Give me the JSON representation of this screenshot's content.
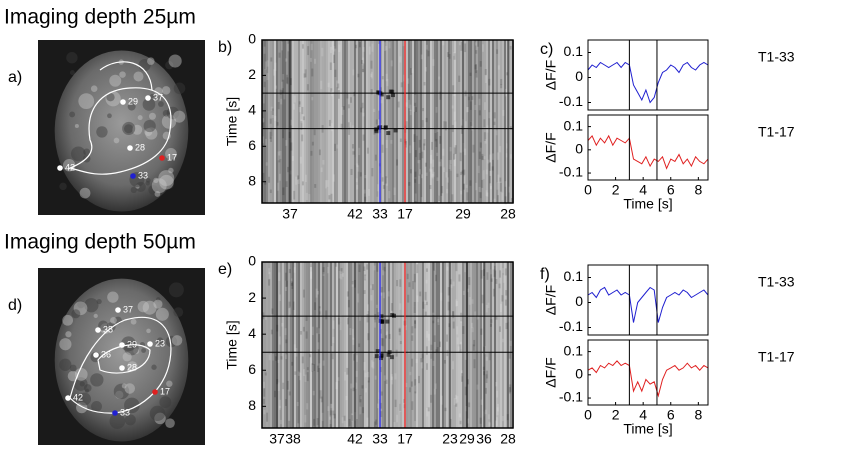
{
  "sections": [
    {
      "title": "Imaging depth 25µm",
      "image_label": "a)",
      "points": [
        "37",
        "29",
        "28",
        "17",
        "42",
        "33"
      ],
      "kymo_label": "b)",
      "kymo_ylabel": "Time [s]",
      "kymo_ylim": [
        0,
        9.2
      ],
      "kymo_yticks": [
        0,
        2,
        4,
        6,
        8
      ],
      "kymo_columns": [
        "37",
        "42",
        "33",
        "17",
        "29",
        "28"
      ],
      "traces_label": "c)"
    },
    {
      "title": "Imaging depth 50µm",
      "image_label": "d)",
      "points": [
        "37",
        "38",
        "36",
        "29",
        "23",
        "28",
        "17",
        "42",
        "33"
      ],
      "kymo_label": "e)",
      "kymo_ylabel": "Time [s]",
      "kymo_ylim": [
        0,
        9.2
      ],
      "kymo_yticks": [
        0,
        2,
        4,
        6,
        8
      ],
      "kymo_columns": [
        "37",
        "38",
        "42",
        "33",
        "17",
        "23",
        "29",
        "36",
        "28"
      ],
      "traces_label": "f)"
    }
  ],
  "chart_data": [
    {
      "type": "line",
      "title": "T1-33",
      "ylabel": "ΔF/F",
      "x": [
        0,
        0.3,
        0.6,
        0.9,
        1.2,
        1.5,
        1.8,
        2.1,
        2.4,
        2.7,
        3,
        3.3,
        3.6,
        3.9,
        4.2,
        4.5,
        4.8,
        5.1,
        5.4,
        5.7,
        6,
        6.3,
        6.6,
        6.9,
        7.2,
        7.5,
        7.8,
        8.1,
        8.4,
        8.7
      ],
      "series": [
        {
          "color": "#2020d0",
          "values": [
            0.03,
            0.05,
            0.04,
            0.06,
            0.05,
            0.04,
            0.05,
            0.06,
            0.04,
            0.06,
            0.05,
            -0.03,
            -0.06,
            -0.09,
            -0.05,
            -0.1,
            -0.08,
            -0.02,
            0.02,
            0.03,
            0.05,
            0.04,
            0.02,
            0.05,
            0.06,
            0.04,
            0.03,
            0.05,
            0.06,
            0.05
          ]
        }
      ],
      "xlim": [
        0,
        8.7
      ],
      "ylim": [
        -0.13,
        0.15
      ],
      "yticks": [
        0.1,
        0,
        -0.1
      ],
      "markers": [
        3,
        5
      ]
    },
    {
      "type": "line",
      "title": "T1-17",
      "ylabel": "ΔF/F",
      "xlabel": "Time [s]",
      "x": [
        0,
        0.3,
        0.6,
        0.9,
        1.2,
        1.5,
        1.8,
        2.1,
        2.4,
        2.7,
        3,
        3.3,
        3.6,
        3.9,
        4.2,
        4.5,
        4.8,
        5.1,
        5.4,
        5.7,
        6,
        6.3,
        6.6,
        6.9,
        7.2,
        7.5,
        7.8,
        8.1,
        8.4,
        8.7
      ],
      "series": [
        {
          "color": "#e02020",
          "values": [
            0.04,
            0.06,
            0.02,
            0.05,
            0.03,
            0.06,
            0.02,
            0.05,
            0.04,
            0.03,
            0.05,
            -0.04,
            -0.05,
            -0.06,
            -0.03,
            -0.07,
            -0.04,
            -0.05,
            -0.03,
            -0.08,
            -0.04,
            -0.05,
            -0.02,
            -0.06,
            -0.04,
            -0.07,
            -0.03,
            -0.05,
            -0.06,
            -0.04
          ]
        }
      ],
      "xlim": [
        0,
        8.7
      ],
      "ylim": [
        -0.13,
        0.15
      ],
      "yticks": [
        0.1,
        0,
        -0.1
      ],
      "xticks": [
        0,
        2,
        4,
        6,
        8
      ],
      "markers": [
        3,
        5
      ]
    },
    {
      "type": "line",
      "title": "T1-33",
      "ylabel": "ΔF/F",
      "x": [
        0,
        0.3,
        0.6,
        0.9,
        1.2,
        1.5,
        1.8,
        2.1,
        2.4,
        2.7,
        3,
        3.3,
        3.6,
        3.9,
        4.2,
        4.5,
        4.8,
        5.1,
        5.4,
        5.7,
        6,
        6.3,
        6.6,
        6.9,
        7.2,
        7.5,
        7.8,
        8.1,
        8.4,
        8.7
      ],
      "series": [
        {
          "color": "#2020d0",
          "values": [
            0.03,
            0.04,
            0.02,
            0.05,
            0.06,
            0.03,
            0.04,
            0.05,
            0.03,
            0.04,
            0.03,
            -0.08,
            0.0,
            0.02,
            0.04,
            0.06,
            0.05,
            -0.08,
            -0.02,
            0.02,
            0.03,
            0.04,
            0.03,
            0.05,
            0.04,
            0.02,
            0.03,
            0.04,
            0.05,
            0.03
          ]
        }
      ],
      "xlim": [
        0,
        8.7
      ],
      "ylim": [
        -0.13,
        0.15
      ],
      "yticks": [
        0.1,
        0,
        -0.1
      ],
      "markers": [
        3,
        5
      ]
    },
    {
      "type": "line",
      "title": "T1-17",
      "ylabel": "ΔF/F",
      "xlabel": "Time [s]",
      "x": [
        0,
        0.3,
        0.6,
        0.9,
        1.2,
        1.5,
        1.8,
        2.1,
        2.4,
        2.7,
        3,
        3.3,
        3.6,
        3.9,
        4.2,
        4.5,
        4.8,
        5.1,
        5.4,
        5.7,
        6,
        6.3,
        6.6,
        6.9,
        7.2,
        7.5,
        7.8,
        8.1,
        8.4,
        8.7
      ],
      "series": [
        {
          "color": "#e02020",
          "values": [
            0.02,
            0.03,
            0.01,
            0.04,
            0.03,
            0.05,
            0.04,
            0.06,
            0.04,
            0.05,
            0.04,
            -0.07,
            -0.03,
            -0.07,
            -0.02,
            -0.04,
            -0.03,
            -0.09,
            -0.02,
            0.02,
            0.03,
            0.04,
            0.02,
            0.03,
            0.05,
            0.03,
            0.04,
            0.02,
            0.04,
            0.03
          ]
        }
      ],
      "xlim": [
        0,
        8.7
      ],
      "ylim": [
        -0.13,
        0.15
      ],
      "yticks": [
        0.1,
        0,
        -0.1
      ],
      "xticks": [
        0,
        2,
        4,
        6,
        8
      ],
      "markers": [
        3,
        5
      ]
    }
  ]
}
